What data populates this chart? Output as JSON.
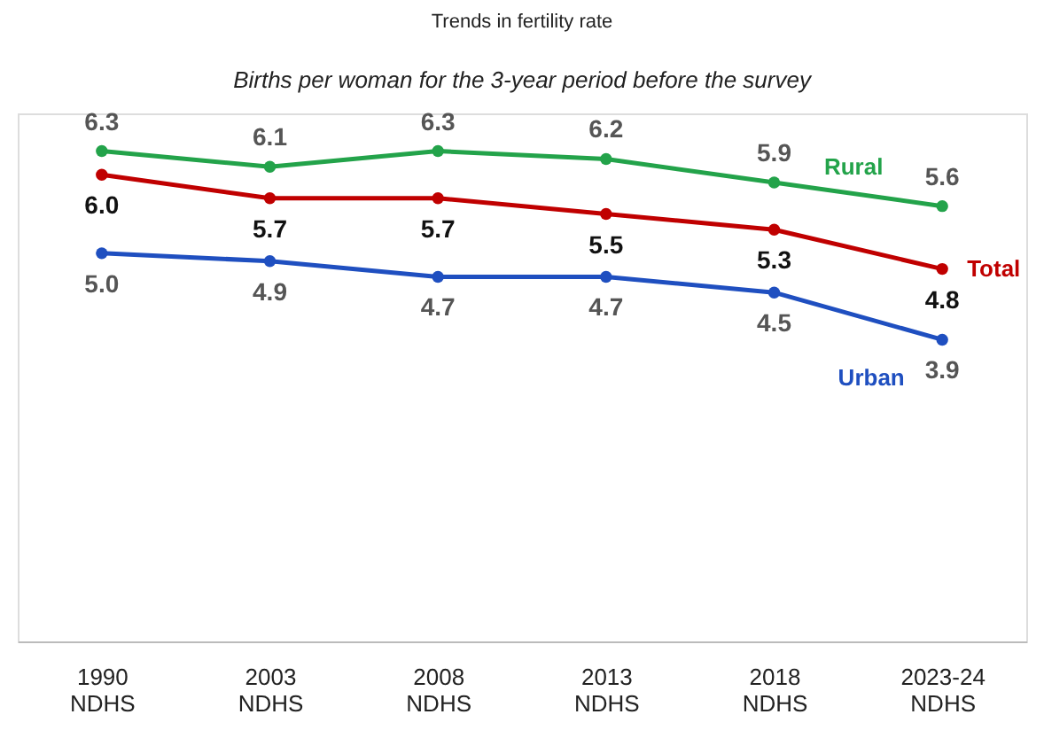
{
  "chart_data": {
    "type": "line",
    "title": "Trends in fertility rate",
    "subtitle": "Births per woman for the 3-year period before the survey",
    "categories": [
      "1990 NDHS",
      "2003 NDHS",
      "2008 NDHS",
      "2013 NDHS",
      "2018 NDHS",
      "2023-24 NDHS"
    ],
    "series": [
      {
        "name": "Rural",
        "color": "#23a34a",
        "values": [
          6.3,
          6.1,
          6.3,
          6.2,
          5.9,
          5.6
        ],
        "value_labels": [
          "6.3",
          "6.1",
          "6.3",
          "6.2",
          "5.9",
          "5.6"
        ]
      },
      {
        "name": "Total",
        "color": "#c00000",
        "values": [
          6.0,
          5.7,
          5.7,
          5.5,
          5.3,
          4.8
        ],
        "value_labels": [
          "6.0",
          "5.7",
          "5.7",
          "5.5",
          "5.3",
          "4.8"
        ]
      },
      {
        "name": "Urban",
        "color": "#1f4fc0",
        "values": [
          5.0,
          4.9,
          4.7,
          4.7,
          4.5,
          3.9
        ],
        "value_labels": [
          "5.0",
          "4.9",
          "4.7",
          "4.7",
          "4.5",
          "3.9"
        ]
      }
    ],
    "marker": "circle",
    "tick_labels": "x"
  }
}
